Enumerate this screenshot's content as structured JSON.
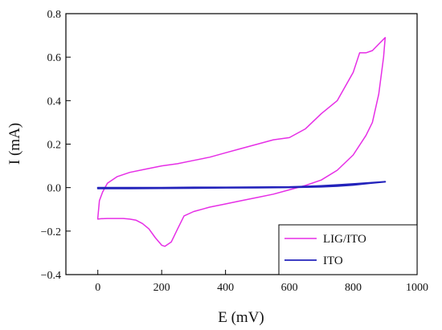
{
  "chart_data": {
    "type": "line",
    "title": "",
    "xlabel": "E (mV)",
    "ylabel": "I (mA)",
    "xlim": [
      -100,
      1000
    ],
    "ylim": [
      -0.4,
      0.8
    ],
    "xticks": [
      0,
      200,
      400,
      600,
      800,
      1000
    ],
    "xtick_labels": [
      "0",
      "200",
      "400",
      "600",
      "800",
      "1000"
    ],
    "yticks": [
      -0.4,
      -0.2,
      0.0,
      0.2,
      0.4,
      0.6,
      0.8
    ],
    "ytick_labels": [
      "−0.4",
      "−0.2",
      "0.0",
      "0.2",
      "0.4",
      "0.6",
      "0.8"
    ],
    "grid": false,
    "legend_position": "bottom-right",
    "series": [
      {
        "name": "LIG/ITO",
        "color": "#e62ee6",
        "x": [
          0,
          5,
          15,
          30,
          60,
          100,
          150,
          200,
          250,
          300,
          350,
          400,
          450,
          500,
          550,
          600,
          650,
          700,
          750,
          800,
          820,
          840,
          860,
          880,
          900,
          895,
          880,
          860,
          840,
          800,
          750,
          700,
          650,
          600,
          550,
          500,
          450,
          400,
          350,
          300,
          270,
          250,
          230,
          210,
          200,
          180,
          160,
          140,
          120,
          100,
          80,
          60,
          30,
          10,
          0,
          0
        ],
        "y": [
          -0.14,
          -0.06,
          -0.02,
          0.02,
          0.05,
          0.07,
          0.085,
          0.1,
          0.11,
          0.125,
          0.14,
          0.16,
          0.18,
          0.2,
          0.22,
          0.23,
          0.27,
          0.34,
          0.4,
          0.53,
          0.62,
          0.62,
          0.63,
          0.66,
          0.69,
          0.6,
          0.43,
          0.3,
          0.24,
          0.15,
          0.08,
          0.035,
          0.01,
          -0.01,
          -0.03,
          -0.045,
          -0.06,
          -0.075,
          -0.09,
          -0.11,
          -0.13,
          -0.19,
          -0.25,
          -0.27,
          -0.265,
          -0.23,
          -0.19,
          -0.165,
          -0.15,
          -0.145,
          -0.142,
          -0.142,
          -0.142,
          -0.143,
          -0.145,
          -0.14
        ]
      },
      {
        "name": "ITO",
        "color": "#2222bb",
        "x": [
          0,
          100,
          200,
          300,
          400,
          500,
          600,
          650,
          700,
          750,
          800,
          850,
          900,
          850,
          800,
          750,
          700,
          600,
          500,
          400,
          300,
          200,
          100,
          0
        ],
        "y": [
          0.0,
          0.0,
          0.0,
          0.001,
          0.001,
          0.002,
          0.003,
          0.005,
          0.008,
          0.012,
          0.017,
          0.022,
          0.027,
          0.02,
          0.012,
          0.007,
          0.004,
          0.001,
          0.0,
          -0.001,
          -0.002,
          -0.003,
          -0.004,
          -0.004
        ]
      }
    ]
  }
}
